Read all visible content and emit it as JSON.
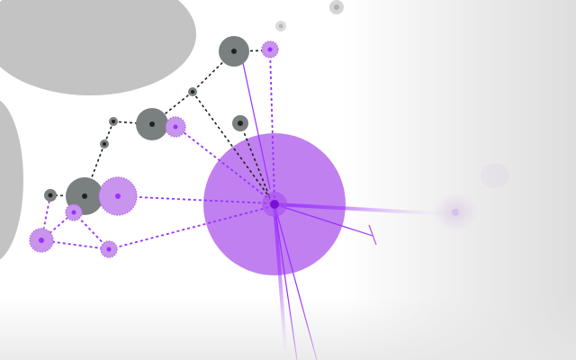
{
  "game": {
    "colors": {
      "player": "#9b30ff",
      "player_fill": "#c080f0",
      "player_cell": "#c994ee",
      "enemy": "#222222",
      "enemy_cell": "#7a7f7f",
      "terrain": "#c3c3c3",
      "neutral": "#d2d2d2"
    }
  }
}
